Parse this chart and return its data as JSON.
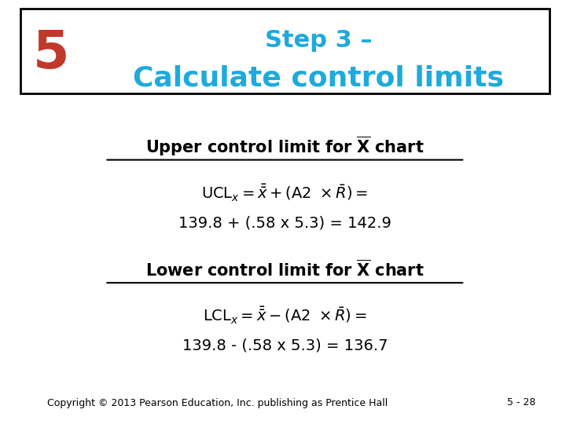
{
  "title_line1": "Step 3 –",
  "title_line2": "Calculate control limits",
  "step_number": "5",
  "title_color": "#1EAADC",
  "step_number_color": "#C0392B",
  "background_color": "#FFFFFF",
  "header_box_color": "#FFFFFF",
  "header_box_border": "#000000",
  "upper_heading": "Upper control limit for ",
  "upper_heading_x_bar": "X",
  "upper_heading_suffix": " chart",
  "upper_formula_line1": "$\\mathrm{UCL}_x = \\bar{\\bar{x}} + (\\mathrm{A2} \\times \\bar{R}) =$",
  "upper_formula_line2": "139.8 + (.58 x 5.3) = 142.9",
  "lower_heading": "Lower control limit for ",
  "lower_heading_x_bar": "X",
  "lower_heading_suffix": " chart",
  "lower_formula_line1": "$\\mathrm{LCL}_x = \\bar{\\bar{x}} - (\\mathrm{A2} \\times \\bar{R}) =$",
  "lower_formula_line2": "139.8 - (.58 x 5.3) = 136.7",
  "copyright": "Copyright © 2013 Pearson Education, Inc. publishing as Prentice Hall",
  "page_number": "5 - 28",
  "body_text_color": "#000000",
  "copyright_fontsize": 9,
  "heading_fontsize": 15,
  "formula_fontsize": 14,
  "title_fontsize1": 22,
  "title_fontsize2": 26,
  "step_fontsize": 48
}
